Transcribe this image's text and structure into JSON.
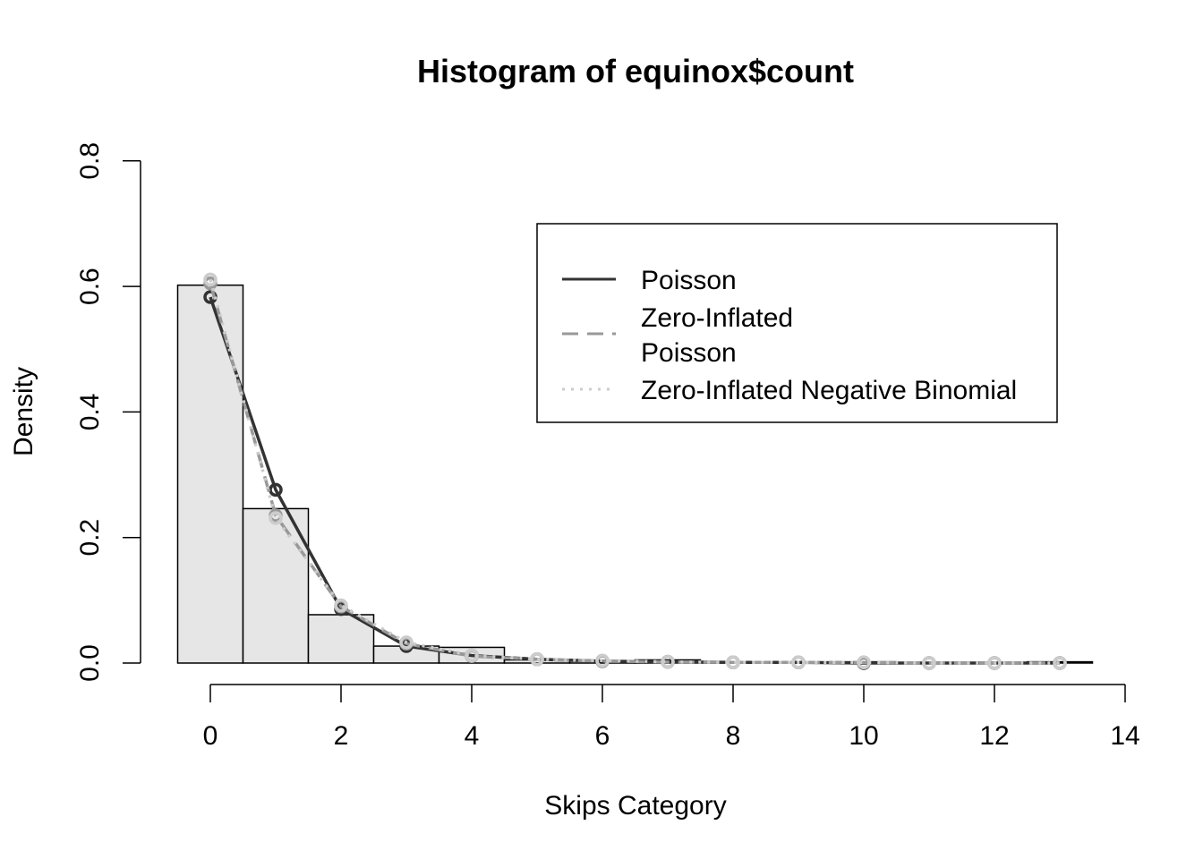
{
  "chart_data": {
    "type": "bar",
    "title": "Histogram of equinox$count",
    "xlabel": "Skips Category",
    "ylabel": "Density",
    "xlim": [
      -0.6,
      13.7
    ],
    "ylim": [
      0,
      0.8
    ],
    "x_ticks": [
      "0",
      "2",
      "4",
      "6",
      "8",
      "10",
      "12",
      "14"
    ],
    "x_tick_values": [
      0,
      2,
      4,
      6,
      8,
      10,
      12,
      14
    ],
    "y_ticks": [
      "0.0",
      "0.2",
      "0.4",
      "0.6",
      "0.8"
    ],
    "y_tick_values": [
      0.0,
      0.2,
      0.4,
      0.6,
      0.8
    ],
    "bins": [
      {
        "x0": -0.5,
        "x1": 0.5,
        "density": 0.602
      },
      {
        "x0": 0.5,
        "x1": 1.5,
        "density": 0.246
      },
      {
        "x0": 1.5,
        "x1": 2.5,
        "density": 0.077
      },
      {
        "x0": 2.5,
        "x1": 3.5,
        "density": 0.027
      },
      {
        "x0": 3.5,
        "x1": 4.5,
        "density": 0.025
      },
      {
        "x0": 4.5,
        "x1": 5.5,
        "density": 0.005
      },
      {
        "x0": 5.5,
        "x1": 6.5,
        "density": 0.003
      },
      {
        "x0": 6.5,
        "x1": 7.5,
        "density": 0.005
      },
      {
        "x0": 7.5,
        "x1": 8.5,
        "density": 0.002
      },
      {
        "x0": 8.5,
        "x1": 9.5,
        "density": 0.001
      },
      {
        "x0": 9.5,
        "x1": 10.5,
        "density": 0.002
      },
      {
        "x0": 10.5,
        "x1": 11.5,
        "density": 0.001
      },
      {
        "x0": 11.5,
        "x1": 12.5,
        "density": 0.0
      },
      {
        "x0": 12.5,
        "x1": 13.5,
        "density": 0.002
      }
    ],
    "bar_fill": "#e6e6e6",
    "bar_stroke": "#000000",
    "series": [
      {
        "name": "Poisson",
        "color": "#333333",
        "dash": "none",
        "x": [
          0,
          1,
          2,
          3,
          4,
          5,
          6,
          7,
          8,
          9,
          10,
          11,
          12,
          13
        ],
        "values": [
          0.583,
          0.276,
          0.086,
          0.027,
          0.012,
          0.006,
          0.003,
          0.002,
          0.001,
          0.001,
          0.0,
          0.0,
          0.0,
          0.0
        ]
      },
      {
        "name": "Zero-Inflated Poisson",
        "color": "#999999",
        "dash": "dashed",
        "x": [
          0,
          1,
          2,
          3,
          4,
          5,
          6,
          7,
          8,
          9,
          10,
          11,
          12,
          13
        ],
        "values": [
          0.605,
          0.235,
          0.09,
          0.031,
          0.011,
          0.006,
          0.003,
          0.002,
          0.001,
          0.001,
          0.001,
          0.0,
          0.0,
          0.0
        ]
      },
      {
        "name": "Zero-Inflated Negative Binomial",
        "color": "#cccccc",
        "dash": "dotted",
        "x": [
          0,
          1,
          2,
          3,
          4,
          5,
          6,
          7,
          8,
          9,
          10,
          11,
          12,
          13
        ],
        "values": [
          0.611,
          0.231,
          0.092,
          0.033,
          0.012,
          0.006,
          0.004,
          0.002,
          0.001,
          0.001,
          0.001,
          0.0,
          0.0,
          0.0
        ]
      }
    ],
    "legend": {
      "position": "top-right",
      "entries": [
        {
          "line1": "Poisson",
          "line2": ""
        },
        {
          "line1": "Zero-Inflated",
          "line2": "Poisson"
        },
        {
          "line1": "Zero-Inflated Negative Binomial",
          "line2": ""
        }
      ]
    },
    "grid": false
  }
}
